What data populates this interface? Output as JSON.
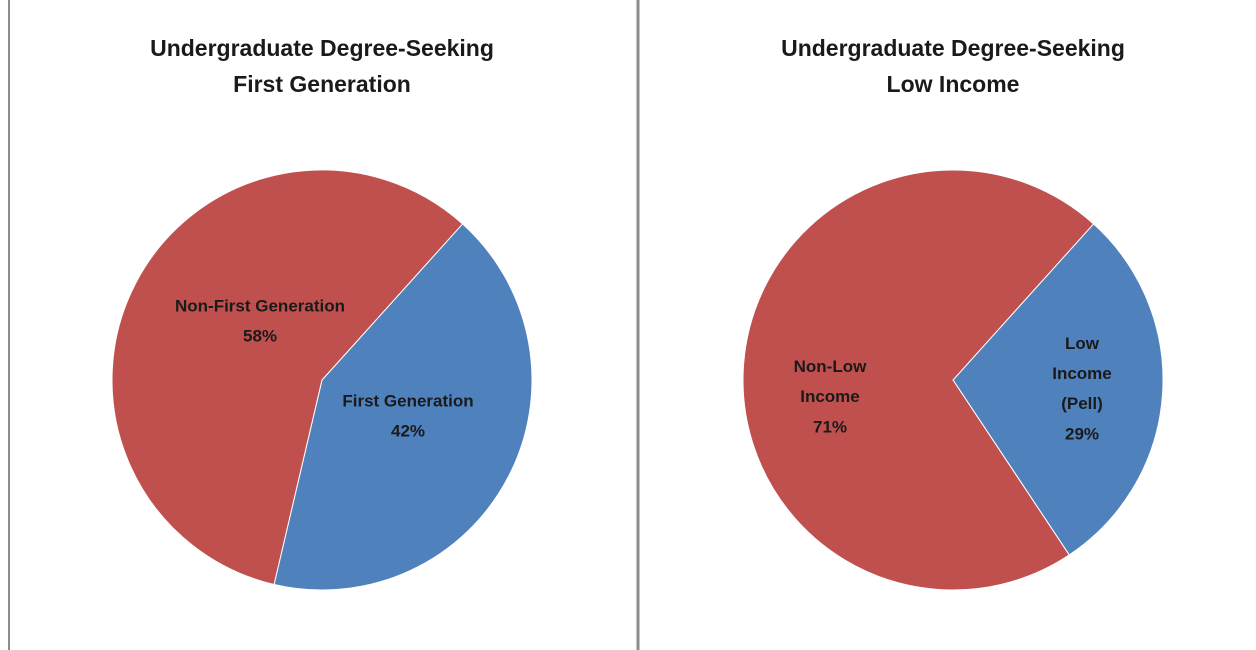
{
  "chart_data": [
    {
      "type": "pie",
      "title": "Undergraduate Degree-Seeking\nFirst Generation",
      "categories": [
        "First Generation",
        "Non-First Generation"
      ],
      "values": [
        42,
        58
      ],
      "value_labels": [
        "42%",
        "58%"
      ],
      "colors": [
        "#4f81bd",
        "#c0504d"
      ]
    },
    {
      "type": "pie",
      "title": "Undergraduate Degree-Seeking\nLow Income",
      "categories": [
        "Low\nIncome\n(Pell)",
        "Non-Low\nIncome"
      ],
      "values": [
        29,
        71
      ],
      "value_labels": [
        "29%",
        "71%"
      ],
      "colors": [
        "#4f81bd",
        "#c0504d"
      ]
    }
  ]
}
